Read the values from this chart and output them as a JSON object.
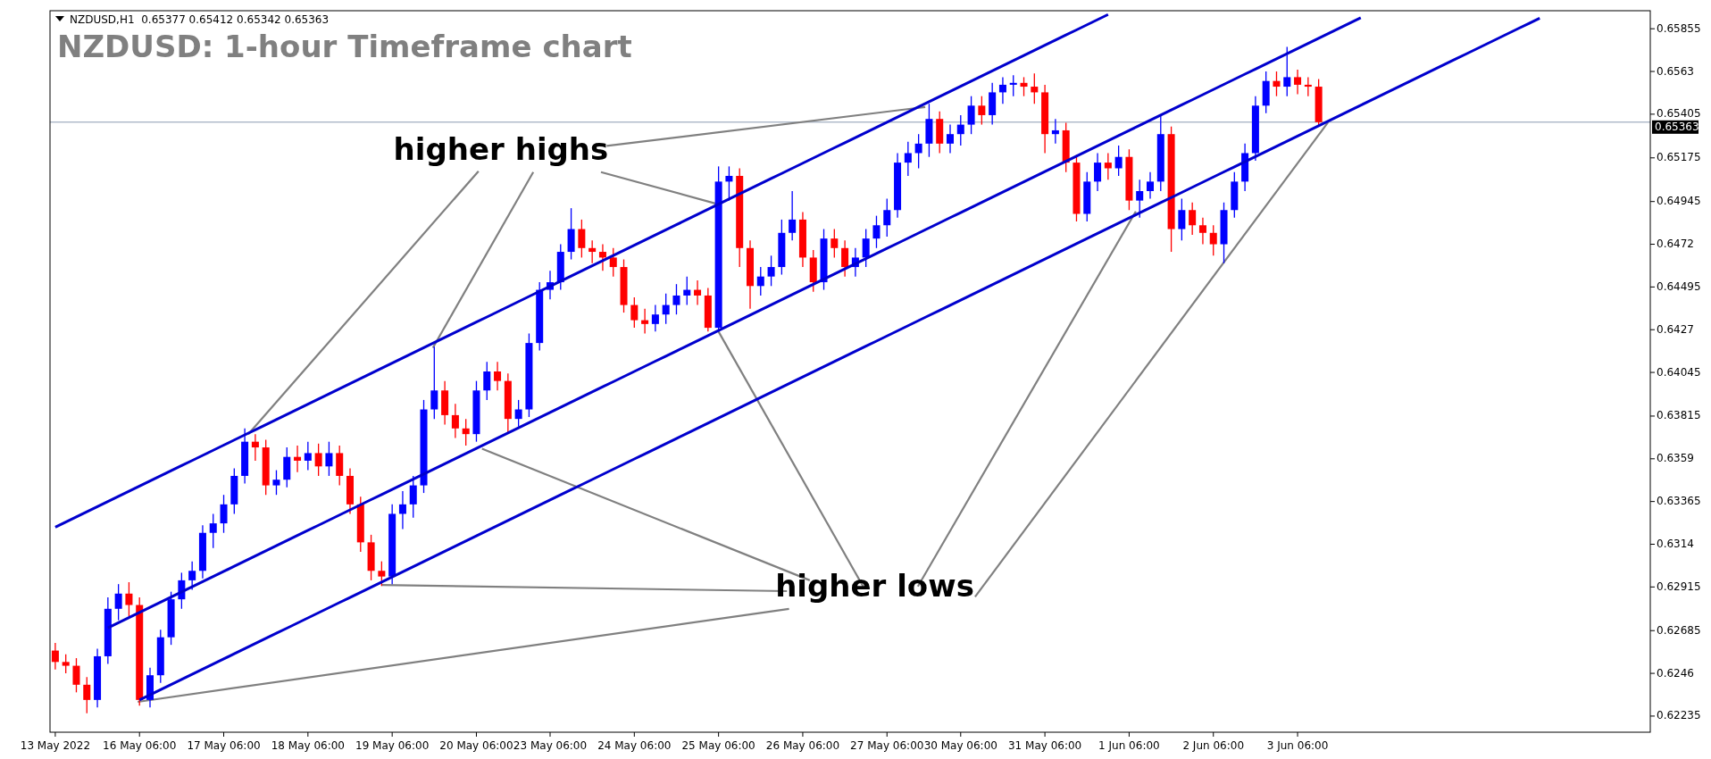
{
  "chart_data": {
    "type": "candlestick",
    "title": "NZDUSD: 1-hour Timeframe chart",
    "annotations": [
      "NZDUSD,H1  0.65377 0.65412 0.65342 0.65363",
      {
        "text": "higher highs",
        "x": "25 May 06:00",
        "y": 0.6493
      },
      {
        "text": "higher lows",
        "x": "25 May 06:00",
        "y": 0.6426
      }
    ],
    "categories": [
      "13 May 2022",
      null,
      null,
      null,
      null,
      null,
      null,
      null,
      "16 May 06:00",
      null,
      null,
      null,
      null,
      null,
      null,
      null,
      "17 May 06:00",
      null,
      null,
      null,
      null,
      null,
      null,
      null,
      "18 May 06:00",
      null,
      null,
      null,
      null,
      null,
      null,
      null,
      "19 May 06:00",
      null,
      null,
      null,
      null,
      null,
      null,
      null,
      "20 May 06:00",
      null,
      null,
      null,
      null,
      null,
      null,
      "23 May 06:00",
      null,
      null,
      null,
      null,
      null,
      null,
      null,
      "24 May 06:00",
      null,
      null,
      null,
      null,
      null,
      null,
      null,
      "25 May 06:00",
      null,
      null,
      null,
      null,
      null,
      null,
      null,
      "26 May 06:00",
      null,
      null,
      null,
      null,
      null,
      null,
      null,
      "27 May 06:00",
      null,
      null,
      null,
      null,
      null,
      null,
      "30 May 06:00",
      null,
      null,
      null,
      null,
      null,
      null,
      null,
      "31 May 06:00",
      null,
      null,
      null,
      null,
      null,
      null,
      null,
      "1 Jun 06:00",
      null,
      null,
      null,
      null,
      null,
      null,
      null,
      "2 Jun 06:00",
      null,
      null,
      null,
      null,
      null,
      null,
      null,
      "3 Jun 06:00",
      null,
      null,
      null,
      null,
      null,
      null,
      null,
      null,
      null,
      null,
      null,
      null,
      null,
      null,
      null,
      null,
      null,
      null,
      null,
      null,
      null,
      null,
      null,
      null,
      null,
      null,
      null,
      null,
      null,
      null,
      null,
      null,
      null
    ],
    "ylim": [
      0.6215,
      0.6595
    ],
    "yticks": [
      0.62235,
      0.6246,
      0.62685,
      0.62915,
      0.6314,
      0.63365,
      0.6359,
      0.63815,
      0.64045,
      0.6427,
      0.64495,
      0.6472,
      0.64945,
      0.65175,
      0.65405,
      0.6563,
      0.65855
    ],
    "ref_lines": [
      {
        "axis": "y",
        "value": 0.65363,
        "label": "0.65363",
        "color": "#8a9ab0"
      }
    ],
    "series": [
      {
        "color": "#0000ff",
        "ohlc": [
          null,
          null,
          null,
          null,
          [
            0.6232,
            0.6259,
            0.6228,
            0.6255
          ],
          [
            0.6255,
            0.6286,
            0.6251,
            0.628
          ],
          [
            0.628,
            0.6293,
            0.6274,
            0.6288
          ],
          null,
          null,
          [
            0.6232,
            0.6249,
            0.6228,
            0.6245
          ],
          [
            0.6245,
            0.6269,
            0.6241,
            0.6265
          ],
          [
            0.6265,
            0.6289,
            0.6261,
            0.6285
          ],
          [
            0.6285,
            0.6299,
            0.628,
            0.6295
          ],
          [
            0.6295,
            0.6305,
            0.629,
            0.63
          ],
          [
            0.63,
            0.6324,
            0.6296,
            0.632
          ],
          [
            0.632,
            0.633,
            0.6312,
            0.6325
          ],
          [
            0.6325,
            0.634,
            0.632,
            0.6335
          ],
          [
            0.6335,
            0.6354,
            0.633,
            0.635
          ],
          [
            0.635,
            0.6375,
            0.6346,
            0.6368
          ],
          null,
          null,
          [
            0.6345,
            0.6353,
            0.634,
            0.6348
          ],
          [
            0.6348,
            0.6365,
            0.6344,
            0.636
          ],
          null,
          [
            0.6358,
            0.6368,
            0.6353,
            0.6362
          ],
          null,
          [
            0.6355,
            0.6368,
            0.635,
            0.6362
          ],
          null,
          null,
          null,
          null,
          null,
          [
            0.6297,
            0.6335,
            0.6293,
            0.633
          ],
          [
            0.633,
            0.6342,
            0.6322,
            0.6335
          ],
          [
            0.6335,
            0.635,
            0.6328,
            0.6345
          ],
          [
            0.6345,
            0.639,
            0.6341,
            0.6385
          ],
          [
            0.6385,
            0.6418,
            0.638,
            0.6395
          ],
          null,
          null,
          null,
          [
            0.6372,
            0.64,
            0.6368,
            0.6395
          ],
          [
            0.6395,
            0.641,
            0.639,
            0.6405
          ],
          null,
          null,
          [
            0.638,
            0.639,
            0.6376,
            0.6385
          ],
          [
            0.6385,
            0.6425,
            0.6381,
            0.642
          ],
          [
            0.642,
            0.6452,
            0.6416,
            0.6448
          ],
          [
            0.6448,
            0.6458,
            0.6443,
            0.6452
          ],
          [
            0.6452,
            0.6472,
            0.6448,
            0.6468
          ],
          [
            0.6468,
            0.6491,
            0.6464,
            0.648
          ],
          null,
          null,
          null,
          null,
          null,
          null,
          null,
          [
            0.643,
            0.644,
            0.6426,
            0.6435
          ],
          [
            0.6435,
            0.6446,
            0.643,
            0.644
          ],
          [
            0.644,
            0.6451,
            0.6435,
            0.6445
          ],
          [
            0.6445,
            0.6455,
            0.644,
            0.6448
          ],
          null,
          null,
          [
            0.6428,
            0.6513,
            0.6426,
            0.6505
          ],
          [
            0.6505,
            0.6513,
            0.6495,
            0.6508
          ],
          null,
          null,
          [
            0.645,
            0.646,
            0.6445,
            0.6455
          ],
          [
            0.6455,
            0.6466,
            0.645,
            0.646
          ],
          [
            0.646,
            0.6485,
            0.6456,
            0.6478
          ],
          [
            0.6478,
            0.65,
            0.6474,
            0.6485
          ],
          null,
          null,
          [
            0.6452,
            0.648,
            0.6448,
            0.6475
          ],
          null,
          null,
          [
            0.646,
            0.647,
            0.6455,
            0.6465
          ],
          [
            0.6465,
            0.648,
            0.646,
            0.6475
          ],
          [
            0.6475,
            0.6487,
            0.647,
            0.6482
          ],
          [
            0.6482,
            0.6496,
            0.6476,
            0.649
          ],
          [
            0.649,
            0.652,
            0.6486,
            0.6515
          ],
          [
            0.6515,
            0.6526,
            0.6508,
            0.652
          ],
          [
            0.652,
            0.653,
            0.6512,
            0.6525
          ],
          [
            0.6525,
            0.6546,
            0.6518,
            0.6538
          ],
          null,
          [
            0.6525,
            0.6535,
            0.652,
            0.653
          ],
          [
            0.653,
            0.654,
            0.6524,
            0.6535
          ],
          [
            0.6535,
            0.655,
            0.653,
            0.6545
          ],
          null,
          [
            0.654,
            0.6557,
            0.6535,
            0.6552
          ],
          [
            0.6552,
            0.656,
            0.6546,
            0.6556
          ],
          [
            0.6556,
            0.6561,
            0.655,
            0.6557
          ],
          null,
          null,
          null,
          [
            0.653,
            0.6538,
            0.6525,
            0.6532
          ],
          null,
          null,
          [
            0.6488,
            0.651,
            0.6484,
            0.6505
          ],
          [
            0.6505,
            0.652,
            0.65,
            0.6515
          ],
          null,
          [
            0.6512,
            0.6524,
            0.6508,
            0.6518
          ],
          null,
          [
            0.6495,
            0.6506,
            0.6486,
            0.65
          ],
          [
            0.65,
            0.651,
            0.6496,
            0.6505
          ],
          [
            0.6505,
            0.654,
            0.65,
            0.653
          ],
          null,
          [
            0.648,
            0.6496,
            0.6474,
            0.649
          ],
          null,
          null,
          null,
          [
            0.6472,
            0.6494,
            0.6462,
            0.649
          ],
          [
            0.649,
            0.651,
            0.6486,
            0.6505
          ],
          [
            0.6505,
            0.6525,
            0.65,
            0.652
          ],
          [
            0.652,
            0.655,
            0.6516,
            0.6545
          ],
          [
            0.6545,
            0.6563,
            0.6541,
            0.6558
          ],
          null,
          [
            0.6555,
            0.6576,
            0.655,
            0.656
          ],
          null,
          null,
          null,
          null,
          null,
          null,
          null,
          null,
          null,
          null,
          null,
          null,
          null,
          null,
          null,
          null,
          null,
          null,
          null,
          null,
          null,
          null,
          null,
          null,
          null,
          null,
          null,
          null,
          null,
          null,
          null,
          null,
          null,
          null
        ]
      },
      {
        "color": "#ff0000",
        "ohlc": [
          [
            0.6258,
            0.6262,
            0.6248,
            0.6252
          ],
          [
            0.6252,
            0.6256,
            0.6246,
            0.625
          ],
          [
            0.625,
            0.6254,
            0.6236,
            0.624
          ],
          [
            0.624,
            0.6244,
            0.6225,
            0.6232
          ],
          null,
          null,
          null,
          [
            0.6288,
            0.6294,
            0.6276,
            0.6282
          ],
          [
            0.6282,
            0.6286,
            0.6229,
            0.6232
          ],
          null,
          null,
          null,
          null,
          null,
          null,
          null,
          null,
          null,
          null,
          [
            0.6368,
            0.6372,
            0.6358,
            0.6365
          ],
          [
            0.6365,
            0.6369,
            0.634,
            0.6345
          ],
          null,
          null,
          [
            0.636,
            0.6366,
            0.6352,
            0.6358
          ],
          null,
          [
            0.6362,
            0.6367,
            0.635,
            0.6355
          ],
          null,
          [
            0.6362,
            0.6366,
            0.6345,
            0.635
          ],
          [
            0.635,
            0.6354,
            0.633,
            0.6335
          ],
          [
            0.6335,
            0.6339,
            0.631,
            0.6315
          ],
          [
            0.6315,
            0.6319,
            0.6295,
            0.63
          ],
          [
            0.63,
            0.6305,
            0.6292,
            0.6297
          ],
          null,
          null,
          null,
          null,
          null,
          [
            0.6395,
            0.64,
            0.6377,
            0.6382
          ],
          [
            0.6382,
            0.6388,
            0.637,
            0.6375
          ],
          [
            0.6375,
            0.638,
            0.6366,
            0.6372
          ],
          null,
          null,
          [
            0.6405,
            0.641,
            0.6395,
            0.64
          ],
          [
            0.64,
            0.6404,
            0.6373,
            0.638
          ],
          null,
          null,
          null,
          null,
          null,
          null,
          [
            0.648,
            0.6485,
            0.6465,
            0.647
          ],
          [
            0.647,
            0.6474,
            0.6462,
            0.6468
          ],
          [
            0.6468,
            0.6472,
            0.6458,
            0.6465
          ],
          [
            0.6465,
            0.647,
            0.6455,
            0.646
          ],
          [
            0.646,
            0.6464,
            0.6436,
            0.644
          ],
          [
            0.644,
            0.6444,
            0.6428,
            0.6432
          ],
          [
            0.6432,
            0.6438,
            0.6425,
            0.643
          ],
          null,
          null,
          null,
          null,
          [
            0.6448,
            0.6453,
            0.644,
            0.6445
          ],
          [
            0.6445,
            0.6449,
            0.6426,
            0.6428
          ],
          null,
          null,
          [
            0.6508,
            0.6512,
            0.646,
            0.647
          ],
          [
            0.647,
            0.6474,
            0.6438,
            0.645
          ],
          null,
          null,
          null,
          null,
          [
            0.6485,
            0.6489,
            0.646,
            0.6465
          ],
          [
            0.6465,
            0.6469,
            0.6447,
            0.6452
          ],
          null,
          [
            0.6475,
            0.648,
            0.6465,
            0.647
          ],
          [
            0.647,
            0.6474,
            0.6455,
            0.646
          ],
          null,
          null,
          null,
          null,
          null,
          null,
          null,
          null,
          [
            0.6538,
            0.6542,
            0.652,
            0.6525
          ],
          null,
          null,
          null,
          [
            0.6545,
            0.655,
            0.6535,
            0.654
          ],
          null,
          null,
          null,
          [
            0.6557,
            0.656,
            0.655,
            0.6555
          ],
          [
            0.6555,
            0.6562,
            0.6546,
            0.6552
          ],
          [
            0.6552,
            0.6556,
            0.652,
            0.653
          ],
          null,
          [
            0.6532,
            0.6536,
            0.651,
            0.6515
          ],
          [
            0.6515,
            0.6519,
            0.6484,
            0.6488
          ],
          null,
          null,
          [
            0.6515,
            0.652,
            0.6506,
            0.6512
          ],
          null,
          [
            0.6518,
            0.6522,
            0.649,
            0.6495
          ],
          null,
          null,
          null,
          [
            0.653,
            0.6534,
            0.6468,
            0.648
          ],
          null,
          [
            0.649,
            0.6494,
            0.6477,
            0.6482
          ],
          [
            0.6482,
            0.6486,
            0.6472,
            0.6478
          ],
          [
            0.6478,
            0.6482,
            0.6466,
            0.6472
          ],
          null,
          null,
          null,
          null,
          null,
          [
            0.6558,
            0.6563,
            0.655,
            0.6555
          ],
          null,
          [
            0.656,
            0.6564,
            0.6551,
            0.6556
          ],
          [
            0.6556,
            0.656,
            0.655,
            0.6555
          ],
          [
            0.6555,
            0.6559,
            0.65342,
            0.65363
          ],
          null,
          null,
          null,
          null,
          null,
          null,
          null,
          null,
          null,
          null,
          null,
          null,
          null,
          null,
          null,
          null,
          null,
          null,
          null,
          null,
          null,
          null,
          null,
          null,
          null,
          null,
          null,
          null,
          null,
          null,
          null
        ]
      },
      {
        "type": "line",
        "color": "#0000cd",
        "values": [
          0.6323,
          0.63257,
          0.63284,
          0.63311,
          0.63338,
          0.63365,
          0.63392,
          0.63419,
          0.63446,
          0.63473,
          0.635,
          0.63527,
          0.63554,
          0.63581,
          0.63608,
          0.63635,
          0.63662,
          0.63689,
          0.63716,
          0.63743,
          0.6377,
          0.63797,
          0.63824,
          0.63851,
          0.63878,
          0.63905,
          0.63932,
          0.63959,
          0.63986,
          0.64013,
          0.6404,
          0.64067,
          0.64094,
          0.64121,
          0.64148,
          0.64175,
          0.64202,
          0.64229,
          0.64256,
          0.64283,
          0.6431,
          0.64337,
          0.64364,
          0.64391,
          0.64418,
          0.64445,
          0.64472,
          0.64499,
          0.64526,
          0.64553,
          0.6458,
          0.64607,
          0.64634,
          0.64661,
          0.64688,
          0.64715,
          0.64742,
          0.64769,
          0.64796,
          0.64823,
          0.6485,
          0.64877,
          0.64904,
          0.64931,
          0.64958,
          0.64985,
          0.65012,
          0.65039,
          0.65066,
          0.65093,
          0.6512,
          0.65147,
          0.65174,
          0.65201,
          0.65228,
          0.65255,
          0.65282,
          0.65309,
          0.65336,
          0.65363,
          0.6539,
          0.65417,
          0.65444,
          0.65471,
          0.65498,
          0.65525,
          0.65552,
          0.65579,
          0.65606,
          0.65633,
          0.6566,
          0.65687,
          0.65714,
          0.65741,
          0.65768,
          0.65795,
          0.65822,
          0.65849,
          0.65876,
          0.65903,
          0.6593,
          null,
          null,
          null,
          null,
          null,
          null,
          null,
          null,
          null,
          null,
          null,
          null,
          null,
          null,
          null,
          null,
          null,
          null,
          null,
          null,
          null,
          null,
          null,
          null,
          null,
          null,
          null,
          null,
          null,
          null,
          null,
          null,
          null,
          null,
          null,
          null,
          null,
          null,
          null,
          null,
          null,
          null,
          null,
          null,
          null,
          null,
          null,
          null,
          null,
          null,
          null
        ]
      },
      {
        "type": "line",
        "color": "#0000cd",
        "values": [
          null,
          null,
          null,
          null,
          null,
          0.627,
          0.62727,
          0.62754,
          0.62781,
          0.62808,
          0.62835,
          0.62862,
          0.62889,
          0.62916,
          0.62943,
          0.6297,
          0.62997,
          0.63024,
          0.63051,
          0.63078,
          0.63105,
          0.63132,
          0.63159,
          0.63186,
          0.63213,
          0.6324,
          0.63267,
          0.63294,
          0.63321,
          0.63348,
          0.63375,
          0.63402,
          0.63429,
          0.63456,
          0.63483,
          0.6351,
          0.63537,
          0.63564,
          0.63591,
          0.63618,
          0.63645,
          0.63672,
          0.63699,
          0.63726,
          0.63753,
          0.6378,
          0.63807,
          0.63834,
          0.63861,
          0.63888,
          0.63915,
          0.63942,
          0.63969,
          0.63996,
          0.64023,
          0.6405,
          0.64077,
          0.64104,
          0.64131,
          0.64158,
          0.64185,
          0.64212,
          0.64239,
          0.64266,
          0.64293,
          0.6432,
          0.64347,
          0.64374,
          0.64401,
          0.64428,
          0.64455,
          0.64482,
          0.64509,
          0.64536,
          0.64563,
          0.6459,
          0.64617,
          0.64644,
          0.64671,
          0.64698,
          0.64725,
          0.64752,
          0.64779,
          0.64806,
          0.64833,
          0.6486,
          0.64887,
          0.64914,
          0.64941,
          0.64968,
          0.64995,
          0.65022,
          0.65049,
          0.65076,
          0.65103,
          0.6513,
          0.65157,
          0.65184,
          0.65211,
          0.65238,
          0.65265,
          0.65292,
          0.65319,
          0.65346,
          0.65373,
          0.654,
          0.65427,
          0.65454,
          0.65481,
          0.65508,
          0.65535,
          0.65562,
          0.65589,
          0.65616,
          0.65643,
          0.6567,
          0.65697,
          0.65724,
          0.65751,
          0.65778,
          0.65805,
          0.65832,
          0.65859,
          0.65886,
          0.65913,
          null,
          null,
          null,
          null,
          null,
          null,
          null,
          null,
          null,
          null,
          null,
          null,
          null,
          null,
          null,
          null,
          null,
          null,
          null,
          null,
          null,
          null,
          null,
          null,
          null,
          null,
          null
        ]
      },
      {
        "type": "line",
        "color": "#0000cd",
        "values": [
          null,
          null,
          null,
          null,
          null,
          null,
          null,
          null,
          0.6232,
          0.62347,
          0.62374,
          0.62401,
          0.62428,
          0.62455,
          0.62482,
          0.62509,
          0.62536,
          0.62563,
          0.6259,
          0.62617,
          0.62644,
          0.62671,
          0.62698,
          0.62725,
          0.62752,
          0.62779,
          0.62806,
          0.62833,
          0.6286,
          0.62887,
          0.62914,
          0.62941,
          0.62968,
          0.62995,
          0.63022,
          0.63049,
          0.63076,
          0.63103,
          0.6313,
          0.63157,
          0.63184,
          0.63211,
          0.63238,
          0.63265,
          0.63292,
          0.63319,
          0.63346,
          0.63373,
          0.634,
          0.63427,
          0.63454,
          0.63481,
          0.63508,
          0.63535,
          0.63562,
          0.63589,
          0.63616,
          0.63643,
          0.6367,
          0.63697,
          0.63724,
          0.63751,
          0.63778,
          0.63805,
          0.63832,
          0.63859,
          0.63886,
          0.63913,
          0.6394,
          0.63967,
          0.63994,
          0.64021,
          0.64048,
          0.64075,
          0.64102,
          0.64129,
          0.64156,
          0.64183,
          0.6421,
          0.64237,
          0.64264,
          0.64291,
          0.64318,
          0.64345,
          0.64372,
          0.64399,
          0.64426,
          0.64453,
          0.6448,
          0.64507,
          0.64534,
          0.64561,
          0.64588,
          0.64615,
          0.64642,
          0.64669,
          0.64696,
          0.64723,
          0.6475,
          0.64777,
          0.64804,
          0.64831,
          0.64858,
          0.64885,
          0.64912,
          0.64939,
          0.64966,
          0.64993,
          0.6502,
          0.65047,
          0.65074,
          0.65101,
          0.65128,
          0.65155,
          0.65182,
          0.65209,
          0.65236,
          0.65263,
          0.6529,
          0.65317,
          0.65344,
          0.65371,
          0.65398,
          0.65425,
          0.65452,
          0.65479,
          0.65506,
          0.65533,
          0.6556,
          0.65587,
          0.65614,
          0.65641,
          0.65668,
          0.65695,
          0.65722,
          0.65749,
          0.65776,
          0.65803,
          0.6583,
          0.65857,
          0.65884,
          0.65911,
          null,
          null,
          null,
          null,
          null,
          null,
          null,
          null,
          null,
          null
        ]
      }
    ]
  }
}
